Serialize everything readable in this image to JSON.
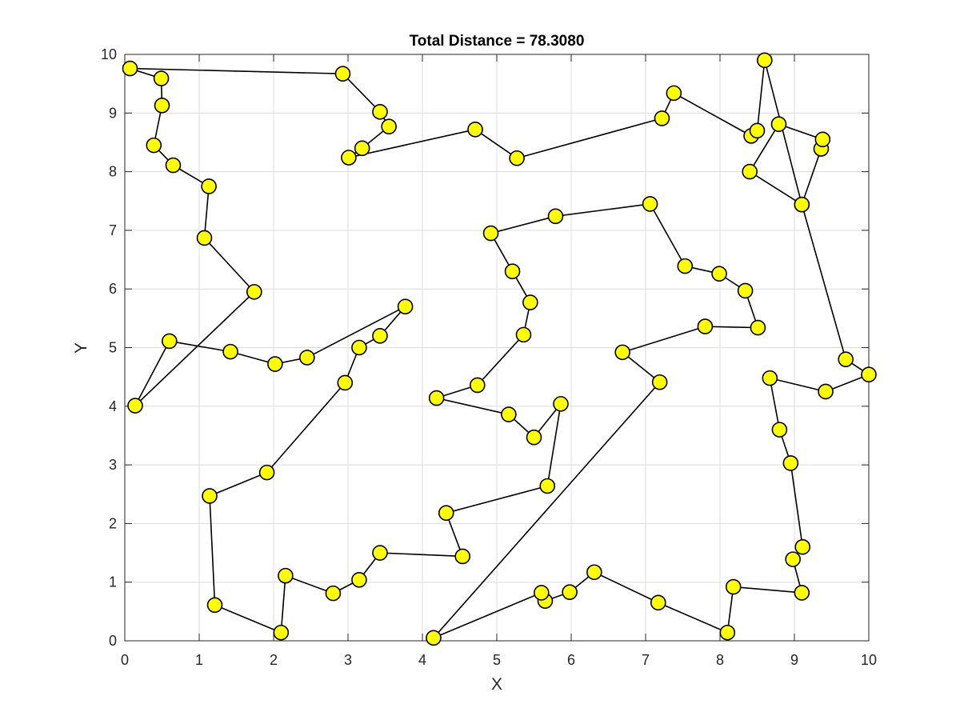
{
  "chart_data": {
    "type": "line",
    "title": "Total Distance = 78.3080",
    "xlabel": "X",
    "ylabel": "Y",
    "xlim": [
      0,
      10
    ],
    "ylim": [
      0,
      10
    ],
    "xticks": [
      "0",
      "1",
      "2",
      "3",
      "4",
      "5",
      "6",
      "7",
      "8",
      "9",
      "10"
    ],
    "yticks": [
      "0",
      "1",
      "2",
      "3",
      "4",
      "5",
      "6",
      "7",
      "8",
      "9",
      "10"
    ],
    "grid": true,
    "marker_color": "#ffff00",
    "marker_edge_color": "#000000",
    "line_color": "#000000",
    "route": [
      [
        0.07,
        9.76
      ],
      [
        2.93,
        9.67
      ],
      [
        3.43,
        9.02
      ],
      [
        3.55,
        8.77
      ],
      [
        3.19,
        8.4
      ],
      [
        3.01,
        8.24
      ],
      [
        4.71,
        8.72
      ],
      [
        5.27,
        8.23
      ],
      [
        7.22,
        8.91
      ],
      [
        7.38,
        9.34
      ],
      [
        8.42,
        8.61
      ],
      [
        8.5,
        8.7
      ],
      [
        8.6,
        9.9
      ],
      [
        9.1,
        7.44
      ],
      [
        9.36,
        8.39
      ],
      [
        9.38,
        8.55
      ],
      [
        8.79,
        8.81
      ],
      [
        8.4,
        8.0
      ],
      [
        9.1,
        7.44
      ],
      [
        9.69,
        4.8
      ],
      [
        10.0,
        4.54
      ],
      [
        9.42,
        4.25
      ],
      [
        8.67,
        4.48
      ],
      [
        8.8,
        3.6
      ],
      [
        8.95,
        3.03
      ],
      [
        9.11,
        1.6
      ],
      [
        8.98,
        1.39
      ],
      [
        9.1,
        0.82
      ],
      [
        8.18,
        0.92
      ],
      [
        8.1,
        0.14
      ],
      [
        7.17,
        0.65
      ],
      [
        6.31,
        1.17
      ],
      [
        5.98,
        0.83
      ],
      [
        5.65,
        0.68
      ],
      [
        5.6,
        0.82
      ],
      [
        4.15,
        0.05
      ],
      [
        7.19,
        4.41
      ],
      [
        6.69,
        4.92
      ],
      [
        7.8,
        5.36
      ],
      [
        8.51,
        5.34
      ],
      [
        8.34,
        5.97
      ],
      [
        7.99,
        6.26
      ],
      [
        7.53,
        6.39
      ],
      [
        7.06,
        7.45
      ],
      [
        5.79,
        7.24
      ],
      [
        4.92,
        6.95
      ],
      [
        5.21,
        6.3
      ],
      [
        5.45,
        5.77
      ],
      [
        5.36,
        5.22
      ],
      [
        4.74,
        4.36
      ],
      [
        4.19,
        4.14
      ],
      [
        5.16,
        3.86
      ],
      [
        5.5,
        3.47
      ],
      [
        5.86,
        4.04
      ],
      [
        5.68,
        2.64
      ],
      [
        4.32,
        2.18
      ],
      [
        4.54,
        1.44
      ],
      [
        3.43,
        1.5
      ],
      [
        3.15,
        1.04
      ],
      [
        2.8,
        0.81
      ],
      [
        2.16,
        1.11
      ],
      [
        2.1,
        0.14
      ],
      [
        1.21,
        0.61
      ],
      [
        1.14,
        2.47
      ],
      [
        1.91,
        2.87
      ],
      [
        2.96,
        4.4
      ],
      [
        3.15,
        5.0
      ],
      [
        3.43,
        5.2
      ],
      [
        3.77,
        5.7
      ],
      [
        2.45,
        4.83
      ],
      [
        2.02,
        4.72
      ],
      [
        1.42,
        4.93
      ],
      [
        0.6,
        5.11
      ],
      [
        0.14,
        4.01
      ],
      [
        1.74,
        5.95
      ],
      [
        1.07,
        6.87
      ],
      [
        1.13,
        7.75
      ],
      [
        0.65,
        8.11
      ],
      [
        0.39,
        8.45
      ],
      [
        0.5,
        9.13
      ],
      [
        0.49,
        9.59
      ],
      [
        0.07,
        9.76
      ]
    ]
  }
}
